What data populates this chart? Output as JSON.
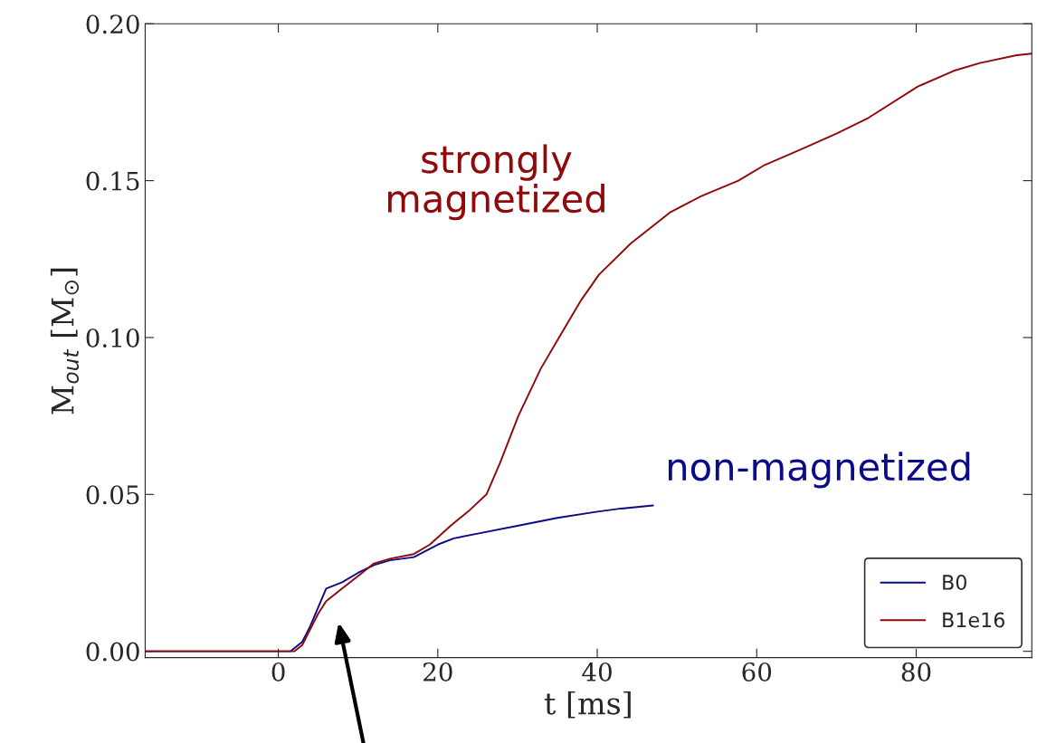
{
  "chart_data": {
    "type": "line",
    "xlabel": "t [ms]",
    "ylabel": "M$_{out}$ [M$_{⊙}$]",
    "xlim": [
      -16.7,
      94.5
    ],
    "ylim": [
      -0.002,
      0.2
    ],
    "xticks": [
      0,
      20,
      40,
      60,
      80
    ],
    "yticks": [
      {
        "value": 0,
        "label": "0.00"
      },
      0.05,
      {
        "value": 0.1,
        "label": "0.10"
      },
      0.15,
      {
        "value": 0.2,
        "label": "0.20"
      }
    ],
    "series": [
      {
        "name": "B0",
        "color": "#0b0b8a",
        "x": [
          -16.7,
          1.5,
          3,
          4,
          5,
          6,
          8,
          10,
          12,
          14,
          17,
          20,
          22,
          25,
          30,
          35,
          40,
          43,
          45,
          47
        ],
        "values": [
          0,
          0,
          0.003,
          0.008,
          0.014,
          0.02,
          0.022,
          0.025,
          0.0275,
          0.029,
          0.03,
          0.034,
          0.036,
          0.0375,
          0.04,
          0.0425,
          0.0445,
          0.0455,
          0.046,
          0.0465
        ]
      },
      {
        "name": "B1e16",
        "color": "#8f0a0a",
        "x": [
          -16.7,
          2,
          3,
          4,
          5,
          6,
          8,
          10,
          12,
          14,
          17,
          19,
          21.6,
          24,
          26.1,
          27.8,
          30.1,
          32.9,
          35.2,
          38,
          40.2,
          44.2,
          49.2,
          53,
          57.7,
          61,
          65.6,
          70,
          74,
          80.2,
          84.7,
          88,
          92.6,
          94.5
        ],
        "values": [
          0,
          0,
          0.002,
          0.007,
          0.012,
          0.016,
          0.02,
          0.024,
          0.028,
          0.0295,
          0.031,
          0.034,
          0.04,
          0.045,
          0.05,
          0.06,
          0.075,
          0.09,
          0.1,
          0.112,
          0.12,
          0.13,
          0.14,
          0.145,
          0.15,
          0.155,
          0.16,
          0.165,
          0.17,
          0.18,
          0.185,
          0.1875,
          0.19,
          0.1905
        ]
      }
    ],
    "annotations": [
      "non-magnetized",
      "strongly\nmagnetized"
    ],
    "legend": "bottom right",
    "grid": false
  }
}
